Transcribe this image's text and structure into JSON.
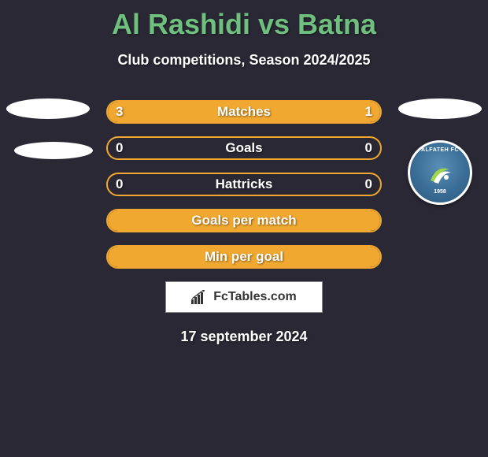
{
  "title": "Al Rashidi vs Batna",
  "subtitle": "Club competitions, Season 2024/2025",
  "colors": {
    "background": "#2a2835",
    "title": "#6fbf7f",
    "text": "#ffffff",
    "bar_border": "#f0a830",
    "bar_fill": "#f0a830",
    "brand_bg": "#ffffff",
    "brand_text": "#333333"
  },
  "typography": {
    "title_fontsize": 36,
    "subtitle_fontsize": 18,
    "label_fontsize": 17,
    "date_fontsize": 18
  },
  "layout": {
    "bar_track_width": 350,
    "bar_track_height": 30,
    "row_gap": 16
  },
  "stats": [
    {
      "label": "Matches",
      "left_val": "3",
      "right_val": "1",
      "left_pct": 75,
      "right_pct": 25,
      "show_vals": true
    },
    {
      "label": "Goals",
      "left_val": "0",
      "right_val": "0",
      "left_pct": 0,
      "right_pct": 0,
      "show_vals": true
    },
    {
      "label": "Hattricks",
      "left_val": "0",
      "right_val": "0",
      "left_pct": 0,
      "right_pct": 0,
      "show_vals": true
    },
    {
      "label": "Goals per match",
      "left_val": "",
      "right_val": "",
      "left_pct": 100,
      "right_pct": 0,
      "show_vals": false,
      "full": true
    },
    {
      "label": "Min per goal",
      "left_val": "",
      "right_val": "",
      "left_pct": 100,
      "right_pct": 0,
      "show_vals": false,
      "full": true
    }
  ],
  "badge": {
    "text_top": "ALFATEH FC",
    "year": "1958",
    "colors": {
      "outer": "#2d5a7d",
      "mid": "#3a6d96",
      "inner": "#5a8fb8",
      "border": "#ffffff",
      "swoosh1": "#9fd64a",
      "swoosh2": "#ffffff"
    }
  },
  "brand": {
    "text": "FcTables.com",
    "icon_name": "bar-chart-icon"
  },
  "date": "17 september 2024"
}
